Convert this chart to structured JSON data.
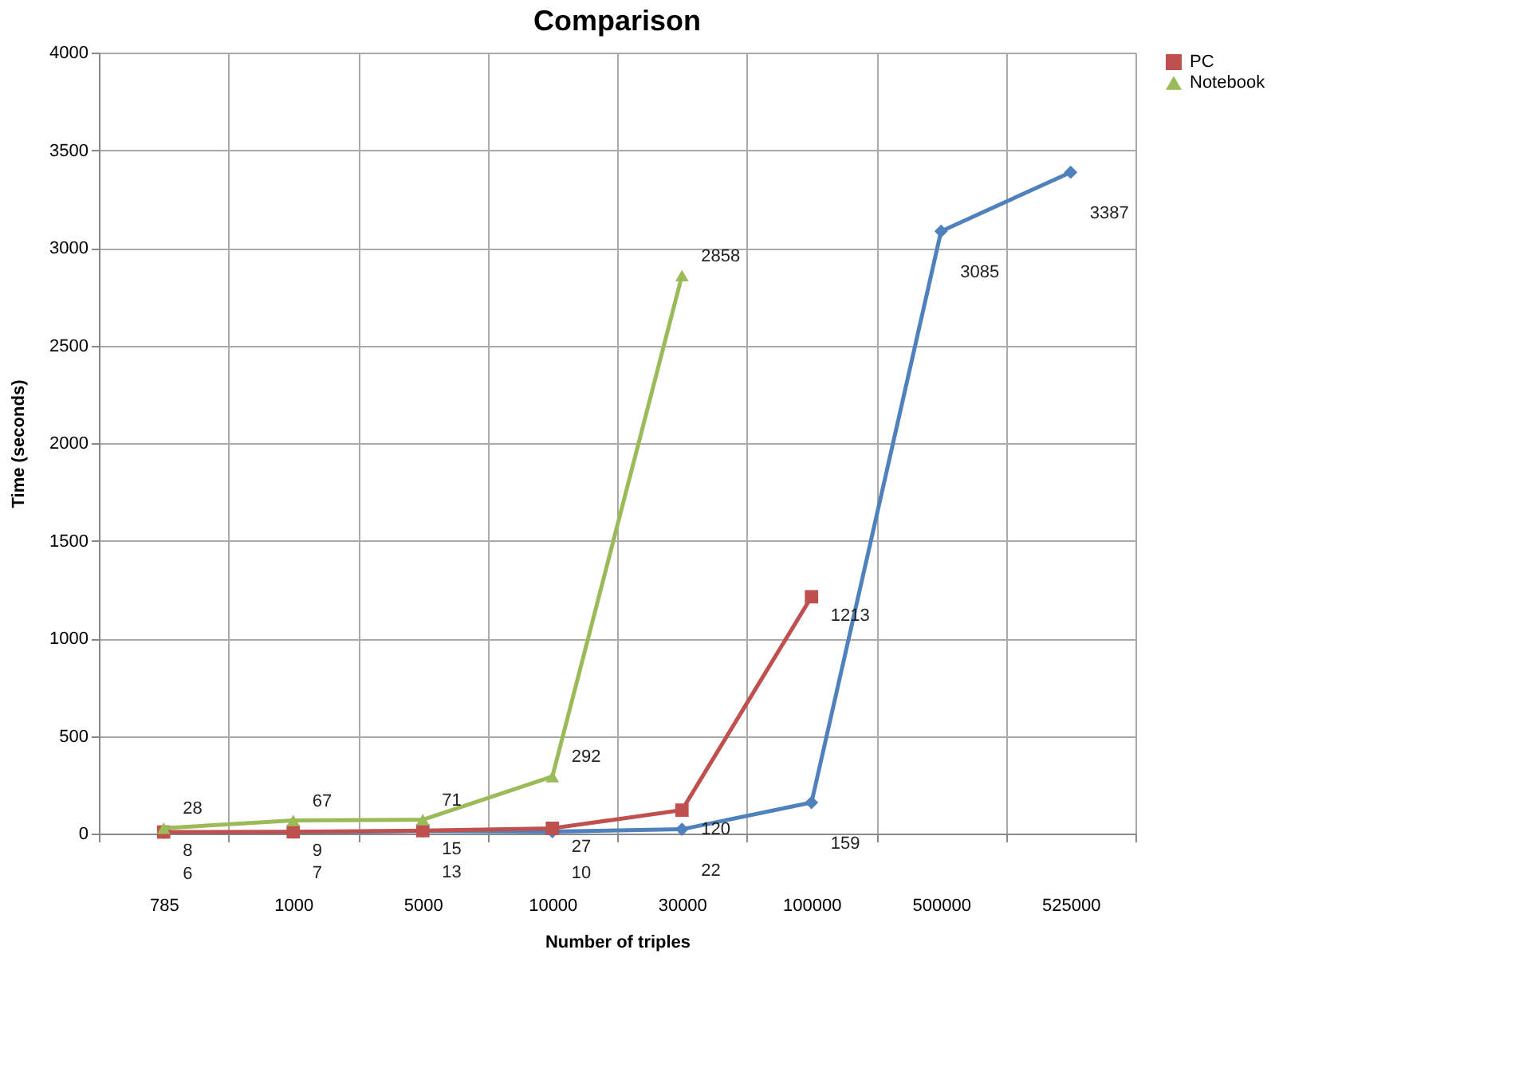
{
  "chart_data": {
    "type": "line",
    "title": "Comparison",
    "xlabel": "Number of triples",
    "ylabel": "Time (seconds)",
    "categories": [
      "785",
      "1000",
      "5000",
      "10000",
      "30000",
      "100000",
      "500000",
      "525000"
    ],
    "series": [
      {
        "color": "#4f81bd",
        "marker": "diamond",
        "values": [
          6,
          7,
          13,
          10,
          22,
          159,
          3085,
          3387
        ]
      },
      {
        "name": "PC",
        "color": "#c0504d",
        "marker": "square",
        "values": [
          8,
          9,
          15,
          27,
          120,
          1213,
          null,
          null
        ]
      },
      {
        "name": "Notebook",
        "color": "#9bbb59",
        "marker": "triangle",
        "values": [
          28,
          67,
          71,
          292,
          2858,
          null,
          null,
          null
        ]
      }
    ],
    "ylim": [
      0,
      4000
    ],
    "yticks": [
      0,
      500,
      1000,
      1500,
      2000,
      2500,
      3000,
      3500,
      4000
    ],
    "grid": true,
    "legend": "right",
    "data_labels": true
  }
}
